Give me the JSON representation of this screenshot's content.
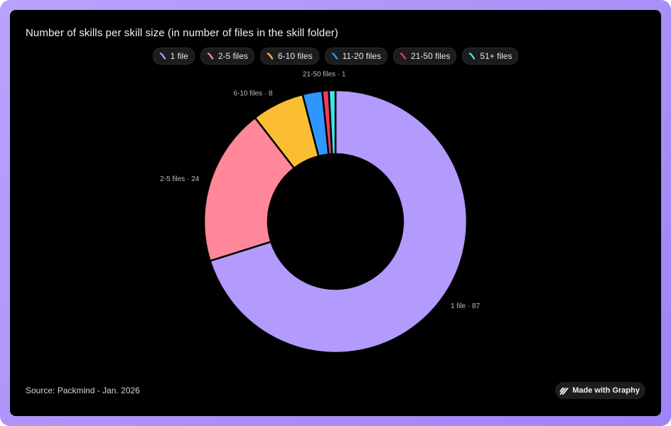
{
  "chart_data": {
    "type": "pie",
    "title": "Number of skills per skill size (in number of files in the skill folder)",
    "categories": [
      "1 file",
      "2-5 files",
      "6-10 files",
      "11-20 files",
      "21-50 files",
      "51+ files"
    ],
    "values": [
      87,
      24,
      8,
      3,
      1,
      1
    ],
    "colors": [
      "#b39afd",
      "#ff8799",
      "#fbbe33",
      "#2e97ff",
      "#ee3b5b",
      "#3ee6e2"
    ],
    "labeled": [
      {
        "category": "1 file",
        "value": 87,
        "text": "1 file · 87"
      },
      {
        "category": "2-5 files",
        "value": 24,
        "text": "2-5 files · 24"
      },
      {
        "category": "6-10 files",
        "value": 8,
        "text": "6-10 files · 8"
      },
      {
        "category": "21-50 files",
        "value": 1,
        "text": "21-50 files · 1"
      }
    ],
    "legend_position": "top-center",
    "donut": true
  },
  "legend": {
    "items": [
      "1 file",
      "2-5 files",
      "6-10 files",
      "11-20 files",
      "21-50 files",
      "51+ files"
    ]
  },
  "footer": {
    "source": "Source: Packmind - Jan. 2026",
    "badge": "Made with Graphy"
  },
  "colors": {
    "background": "#000000",
    "frame": "#a98ff7"
  },
  "icons": {
    "legend_swatch": "slash-swatch-icon",
    "badge": "graphy-logo-icon"
  }
}
